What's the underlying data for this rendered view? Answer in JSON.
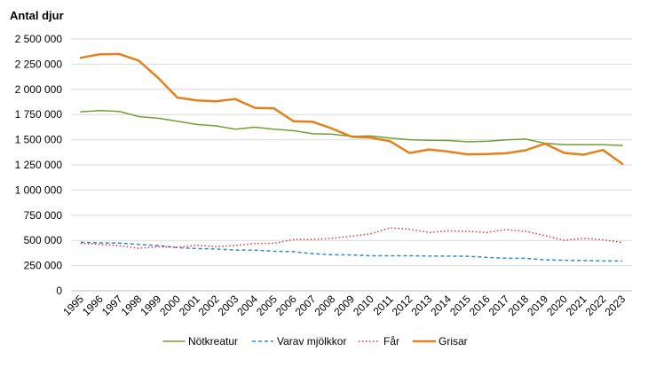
{
  "chart_data": {
    "type": "line",
    "title": "",
    "xlabel": "",
    "ylabel": "Antal djur",
    "ylim": [
      0,
      2500000
    ],
    "yticks": [
      0,
      250000,
      500000,
      750000,
      1000000,
      1250000,
      1500000,
      1750000,
      2000000,
      2250000,
      2500000
    ],
    "ytick_labels": [
      "0",
      "250 000",
      "500 000",
      "750 000",
      "1 000 000",
      "1 250 000",
      "1 500 000",
      "1 750 000",
      "2 000 000",
      "2 250 000",
      "2 500 000"
    ],
    "grid": "horizontal",
    "legend_position": "bottom",
    "x": [
      "1995",
      "1996",
      "1997",
      "1998",
      "1999",
      "2000",
      "2001",
      "2002",
      "2003",
      "2004",
      "2005",
      "2006",
      "2007",
      "2008",
      "2009",
      "2010",
      "2011",
      "2012",
      "2013",
      "2014",
      "2015",
      "2016",
      "2017",
      "2018",
      "2019",
      "2020",
      "2021",
      "2022",
      "2023"
    ],
    "series": [
      {
        "name": "Nötkreatur",
        "color": "#70a031",
        "style": "solid",
        "values": [
          1777000,
          1790000,
          1781000,
          1730000,
          1713000,
          1684000,
          1651000,
          1637000,
          1604000,
          1624000,
          1604000,
          1590000,
          1559000,
          1555000,
          1534000,
          1537000,
          1516000,
          1500000,
          1494000,
          1492000,
          1480000,
          1484000,
          1498000,
          1506000,
          1465000,
          1450000,
          1451000,
          1450000,
          1443000
        ]
      },
      {
        "name": "Varav mjölkkor",
        "color": "#2e8bd1",
        "style": "dashed",
        "values": [
          482000,
          475000,
          474000,
          460000,
          449000,
          428000,
          419000,
          415000,
          404000,
          403000,
          393000,
          388000,
          368000,
          357000,
          356000,
          348000,
          348000,
          348000,
          345000,
          344000,
          342000,
          331000,
          323000,
          322000,
          307000,
          303000,
          300000,
          296000,
          296000
        ]
      },
      {
        "name": "Får",
        "color": "#e0343a",
        "style": "dotted",
        "values": [
          470000,
          460000,
          448000,
          422000,
          437000,
          432000,
          452000,
          438000,
          449000,
          470000,
          471000,
          509000,
          509000,
          521000,
          542000,
          565000,
          625000,
          611000,
          578000,
          595000,
          590000,
          578000,
          608000,
          590000,
          548000,
          501000,
          520000,
          506000,
          479000
        ]
      },
      {
        "name": "Grisar",
        "color": "#e5801c",
        "style": "solid-bold",
        "values": [
          2313000,
          2349000,
          2351000,
          2285000,
          2115000,
          1918000,
          1891000,
          1882000,
          1903000,
          1817000,
          1811000,
          1683000,
          1678000,
          1610000,
          1530000,
          1520000,
          1484000,
          1368000,
          1403000,
          1382000,
          1355000,
          1357000,
          1365000,
          1395000,
          1460000,
          1369000,
          1351000,
          1398000,
          1260000
        ]
      }
    ]
  }
}
